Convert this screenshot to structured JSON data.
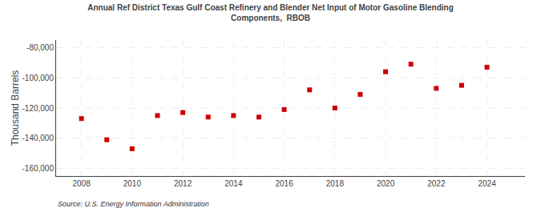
{
  "chart_data": {
    "type": "scatter",
    "title": "Annual Ref District Texas Gulf Coast Refinery and Blender Net Input of Motor Gasoline Blending\nComponents,  RBOB",
    "ylabel": "Thousand Barrels",
    "annotations": [
      "Source: U.S. Energy Information Administration"
    ],
    "x": [
      2008,
      2009,
      2010,
      2011,
      2012,
      2013,
      2014,
      2015,
      2016,
      2017,
      2018,
      2019,
      2020,
      2021,
      2022,
      2023,
      2024
    ],
    "values": [
      -127000,
      -141000,
      -147000,
      -125000,
      -123000,
      -126000,
      -125000,
      -126000,
      -121000,
      -108000,
      -120000,
      -111000,
      -96000,
      -91000,
      -107000,
      -105000,
      -93000
    ],
    "color": "#cc0000",
    "marker": "square",
    "xlim": [
      2007.0,
      2025.5
    ],
    "xticks": [
      2008,
      2010,
      2012,
      2014,
      2016,
      2018,
      2020,
      2022,
      2024
    ],
    "ylim": [
      -165000,
      -75000
    ],
    "yticks": [
      {
        "value": -160000,
        "label": "-160,000"
      },
      {
        "value": -140000,
        "label": "-140,000"
      },
      {
        "value": -120000,
        "label": "-120,000"
      },
      {
        "value": -100000,
        "label": "-100,000"
      },
      {
        "value": -80000,
        "label": "-80,000"
      }
    ],
    "grid": true
  }
}
